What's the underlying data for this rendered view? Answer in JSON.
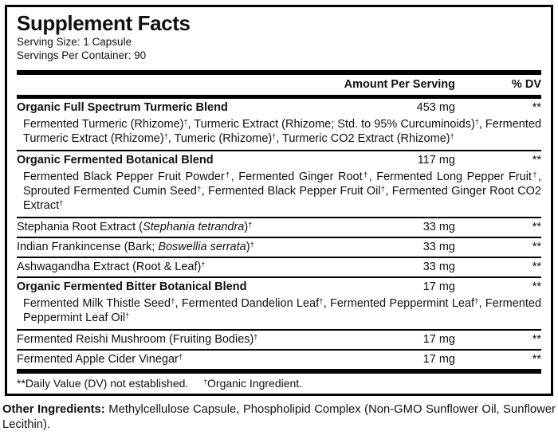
{
  "panel": {
    "title": "Supplement Facts",
    "serving_size": "Serving Size: 1 Capsule",
    "servings_per_container": "Servings Per Container: 90",
    "columns": {
      "amount": "Amount Per Serving",
      "dv": "% DV"
    },
    "rows": [
      {
        "name": "Organic Full Spectrum Turmeric Blend",
        "bold": true,
        "amount": "453 mg",
        "dv": "**",
        "sub": "Fermented Turmeric (Rhizome)†, Turmeric Extract (Rhizome; Std. to 95% Curcuminoids)†, Fermented Turmeric Extract (Rhizome)†, Tumeric (Rhizome)†, Turmeric CO2 Extract (Rhizome)†"
      },
      {
        "name": "Organic Fermented Botanical Blend",
        "bold": true,
        "amount": "117 mg",
        "dv": "**",
        "sub": "Fermented Black Pepper Fruit Powder†, Fermented Ginger Root†, Fermented Long Pepper Fruit†, Sprouted Fermented Cumin Seed†, Fermented Black Pepper Fruit Oil†, Fermented Ginger Root CO2 Extract†"
      },
      {
        "name": "Stephania Root Extract (*Stephania tetrandra*)†",
        "bold": false,
        "amount": "33 mg",
        "dv": "**"
      },
      {
        "name": "Indian Frankincense (Bark; *Boswellia serrata*)†",
        "bold": false,
        "amount": "33 mg",
        "dv": "**"
      },
      {
        "name": "Ashwagandha Extract (Root & Leaf)†",
        "bold": false,
        "amount": "33 mg",
        "dv": "**"
      },
      {
        "name": "Organic Fermented Bitter Botanical Blend",
        "bold": true,
        "amount": "17 mg",
        "dv": "**",
        "sub": "Fermented Milk Thistle Seed†, Fermented Dandelion Leaf†, Fermented Peppermint Leaf†, Fermented Peppermint Leaf Oil†"
      },
      {
        "name": "Fermented Reishi Mushroom (Fruiting Bodies)†",
        "bold": false,
        "amount": "17 mg",
        "dv": "**"
      },
      {
        "name": "Fermented Apple Cider Vinegar†",
        "bold": false,
        "amount": "17 mg",
        "dv": "**"
      }
    ],
    "footnotes": {
      "dv": "**Daily Value (DV) not established.",
      "organic": "†Organic Ingredient."
    }
  },
  "other_ingredients": {
    "label": "Other Ingredients:",
    "text": "Methylcellulose Capsule, Phospholipid Complex (Non-GMO Sunflower Oil, Sunflower Lecithin)."
  },
  "colors": {
    "ink": "#111111",
    "rule": "#000000",
    "background": "#ffffff"
  }
}
